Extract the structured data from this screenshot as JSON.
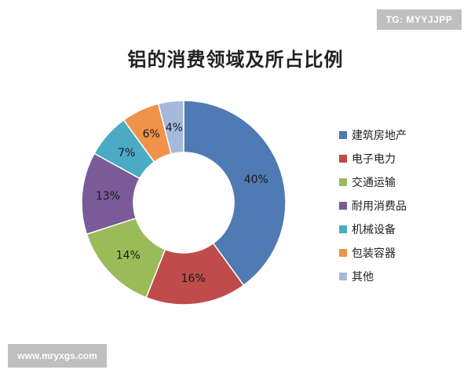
{
  "watermarks": {
    "top_right": "TG: MYYJJPP",
    "bottom_left": "www.mryxgs.com"
  },
  "chart_data": {
    "type": "pie",
    "style": "donut",
    "title": "铝的消费领域及所占比例",
    "legend_position": "right",
    "slices": [
      {
        "label": "建筑房地产",
        "value": 40,
        "display": "40%",
        "color": "#4f7ab3"
      },
      {
        "label": "电子电力",
        "value": 16,
        "display": "16%",
        "color": "#bf4b4b"
      },
      {
        "label": "交通运输",
        "value": 14,
        "display": "14%",
        "color": "#9bbb59"
      },
      {
        "label": "耐用消费品",
        "value": 13,
        "display": "13%",
        "color": "#7a5b98"
      },
      {
        "label": "机械设备",
        "value": 7,
        "display": "7%",
        "color": "#4baac4"
      },
      {
        "label": "包装容器",
        "value": 6,
        "display": "6%",
        "color": "#f1924a"
      },
      {
        "label": "其他",
        "value": 4,
        "display": "4%",
        "color": "#a5b9dc"
      }
    ]
  }
}
